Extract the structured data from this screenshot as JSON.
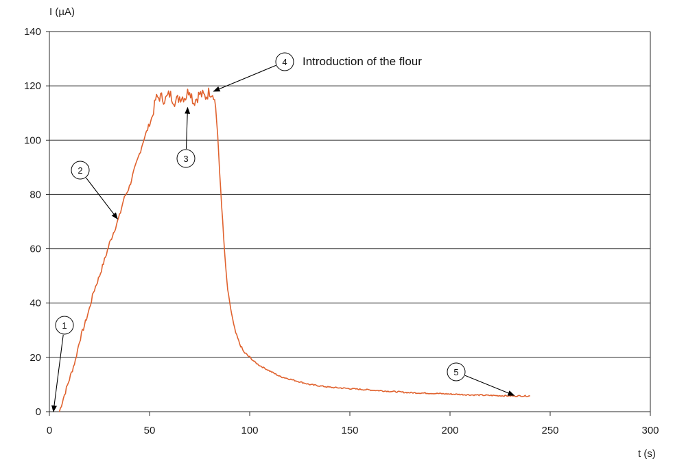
{
  "chart_data": {
    "type": "line",
    "title": "",
    "xlabel": "t (s)",
    "ylabel": "I (µA)",
    "xlim": [
      0,
      300
    ],
    "ylim": [
      0,
      140
    ],
    "x_ticks": [
      "0",
      "50",
      "100",
      "150",
      "200",
      "250",
      "300"
    ],
    "y_ticks": [
      "0",
      "20",
      "40",
      "60",
      "80",
      "100",
      "120",
      "140"
    ],
    "grid": "horizontal",
    "line_color": "#e0622e",
    "series": [
      {
        "x": [
          5,
          7,
          10,
          13,
          15,
          18,
          20,
          22,
          25,
          28,
          30,
          32,
          35,
          37,
          40,
          42,
          45,
          47,
          50,
          52,
          53,
          55,
          58,
          60,
          63,
          65,
          68,
          70,
          72,
          75,
          78,
          80,
          82,
          83,
          84,
          85,
          86,
          87,
          88,
          89,
          90,
          91,
          92,
          93,
          95,
          97,
          100,
          103,
          105,
          110,
          115,
          120,
          130,
          140,
          150,
          160,
          170,
          180,
          190,
          200,
          210,
          220,
          230,
          240
        ],
        "y": [
          0,
          5,
          12,
          19,
          26,
          33,
          38,
          44,
          50,
          57,
          62,
          66,
          72,
          78,
          83,
          88,
          95,
          100,
          106,
          110,
          115,
          116,
          115,
          117,
          114,
          116,
          116,
          119,
          114,
          117,
          116,
          118,
          117,
          112,
          102,
          88,
          76,
          64,
          53,
          45,
          40,
          36,
          32,
          29,
          25,
          22,
          20,
          18,
          17,
          15,
          13,
          12,
          10,
          9,
          8.5,
          8,
          7.5,
          7,
          6.8,
          6.5,
          6.2,
          6,
          5.8,
          5.8
        ]
      }
    ],
    "annotations": [
      {
        "number": "1",
        "text": ""
      },
      {
        "number": "2",
        "text": ""
      },
      {
        "number": "3",
        "text": ""
      },
      {
        "number": "4",
        "text": "Introduction of the flour"
      },
      {
        "number": "5",
        "text": ""
      }
    ]
  }
}
